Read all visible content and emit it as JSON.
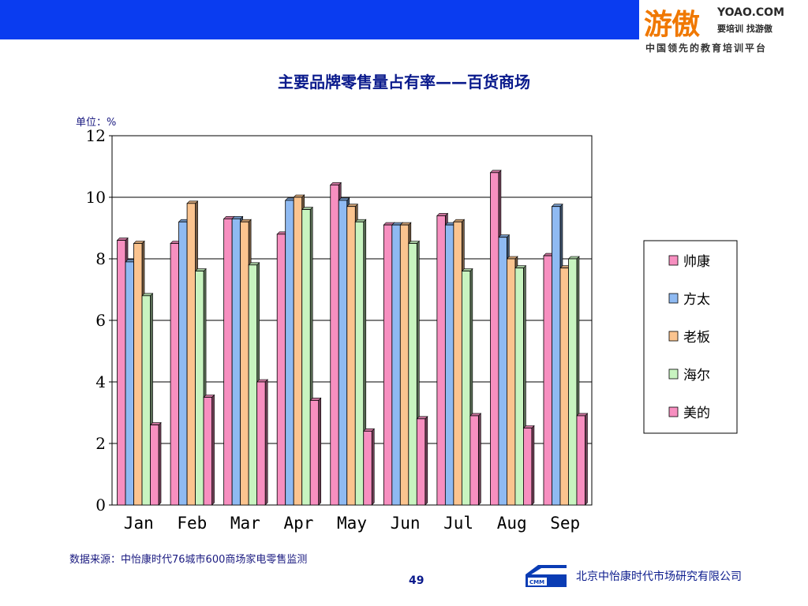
{
  "header": {
    "logo_main": "游傲",
    "logo_url": "YOAO.COM",
    "logo_slogan": "要培训 找游傲",
    "logo_sub": "中国领先的教育培训平台"
  },
  "title": "主要品牌零售量占有率——百货商场",
  "unit_label": "单位：%",
  "chart_data": {
    "type": "bar",
    "categories": [
      "Jan",
      "Feb",
      "Mar",
      "Apr",
      "May",
      "Jun",
      "Jul",
      "Aug",
      "Sep"
    ],
    "ylim": [
      0,
      12
    ],
    "yticks": [
      0,
      2,
      4,
      6,
      8,
      10,
      12
    ],
    "grid": true,
    "legend_position": "right",
    "series": [
      {
        "name": "帅康",
        "color": "#f78fc0",
        "values": [
          8.6,
          8.5,
          9.3,
          8.8,
          10.4,
          9.1,
          9.4,
          10.8,
          8.1
        ]
      },
      {
        "name": "方太",
        "color": "#8fbaf2",
        "values": [
          7.9,
          9.2,
          9.3,
          9.9,
          9.9,
          9.1,
          9.1,
          8.7,
          9.7
        ]
      },
      {
        "name": "老板",
        "color": "#fbc48f",
        "values": [
          8.5,
          9.8,
          9.2,
          10.0,
          9.7,
          9.1,
          9.2,
          8.0,
          7.7
        ]
      },
      {
        "name": "海尔",
        "color": "#c8f4c0",
        "values": [
          6.8,
          7.6,
          7.8,
          9.6,
          9.2,
          8.5,
          7.6,
          7.7,
          8.0
        ]
      },
      {
        "name": "美的",
        "color": "#f78fc0",
        "values": [
          2.6,
          3.5,
          4.0,
          3.4,
          2.4,
          2.8,
          2.9,
          2.5,
          2.9
        ]
      }
    ]
  },
  "footer": {
    "source": "数据来源：中怡康时代76城市600商场家电零售监测",
    "page": "49",
    "cmm_text": "CMM",
    "company": "北京中怡康时代市场研究有限公司"
  }
}
